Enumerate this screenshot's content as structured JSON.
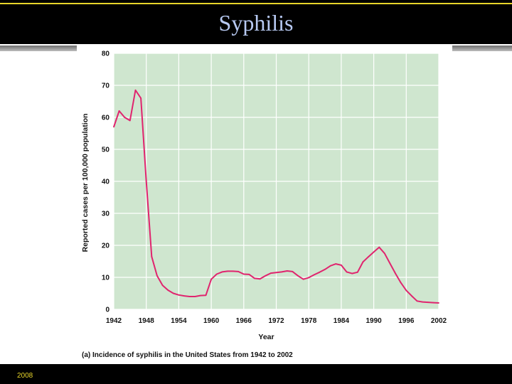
{
  "slide": {
    "title": "Syphilis",
    "footer_text": "2008"
  },
  "colors": {
    "plot_background": "#cfe6cf",
    "line": "#e0246e",
    "title_text": "#b7c9f2",
    "accent": "#e8d52a"
  },
  "chart_data": {
    "type": "line",
    "title": "",
    "caption": "(a) Incidence of syphilis in the United States from 1942 to 2002",
    "xlabel": "Year",
    "ylabel": "Reported cases per 100,000 population",
    "xlim": [
      1942,
      2002
    ],
    "ylim": [
      0,
      80
    ],
    "xticks": [
      1942,
      1948,
      1954,
      1960,
      1966,
      1972,
      1978,
      1984,
      1990,
      1996,
      2002
    ],
    "yticks": [
      0,
      10,
      20,
      30,
      40,
      50,
      60,
      70,
      80
    ],
    "grid": true,
    "legend": "none",
    "series": [
      {
        "x": [
          1942,
          1943,
          1944,
          1945,
          1946,
          1947,
          1948,
          1949,
          1950,
          1951,
          1952,
          1953,
          1954,
          1955,
          1956,
          1957,
          1958,
          1959,
          1960,
          1961,
          1962,
          1963,
          1964,
          1965,
          1966,
          1967,
          1968,
          1969,
          1970,
          1971,
          1972,
          1973,
          1974,
          1975,
          1976,
          1977,
          1978,
          1979,
          1980,
          1981,
          1982,
          1983,
          1984,
          1985,
          1986,
          1987,
          1988,
          1989,
          1990,
          1991,
          1992,
          1993,
          1994,
          1995,
          1996,
          1997,
          1998,
          1999,
          2000,
          2001,
          2002
        ],
        "values": [
          57,
          62,
          60,
          59,
          68.5,
          66,
          40,
          16.5,
          10.5,
          7.5,
          6,
          5,
          4.5,
          4.2,
          4.0,
          4.0,
          4.3,
          4.4,
          9.4,
          11,
          11.7,
          11.9,
          11.9,
          11.8,
          11.0,
          10.9,
          9.7,
          9.5,
          10.5,
          11.3,
          11.5,
          11.7,
          12.0,
          11.8,
          10.5,
          9.4,
          9.9,
          10.8,
          11.6,
          12.5,
          13.6,
          14.2,
          13.8,
          11.7,
          11.2,
          11.6,
          14.8,
          16.4,
          17.9,
          19.4,
          17.5,
          14.3,
          11.2,
          8.3,
          5.9,
          4.2,
          2.6,
          2.3,
          2.2,
          2.1,
          2.0
        ]
      }
    ]
  }
}
